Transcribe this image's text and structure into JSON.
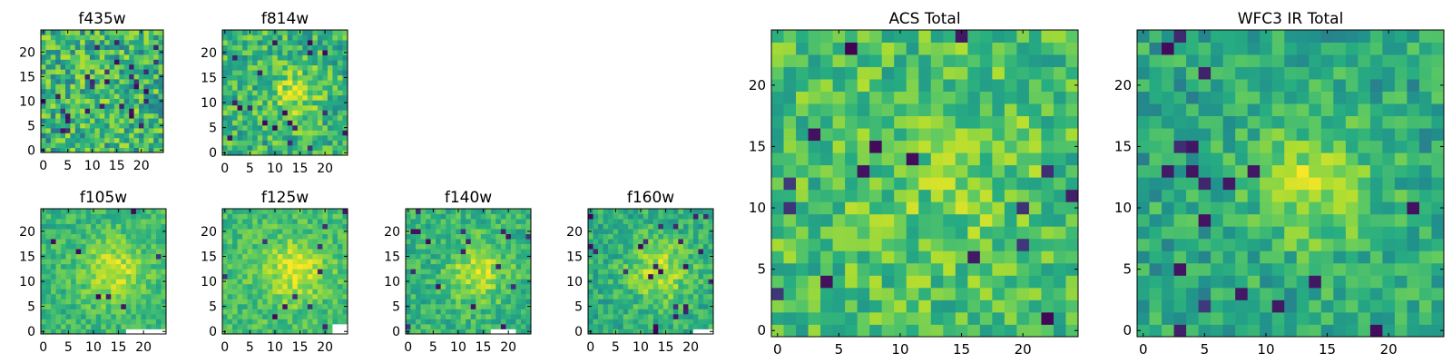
{
  "colors": {
    "colormap": [
      "#440154",
      "#3b528b",
      "#21918c",
      "#27ad81",
      "#5ec962",
      "#aadc32",
      "#fde725"
    ],
    "missing": "#ffffff",
    "frame": "#000000"
  },
  "chart_data": [
    {
      "type": "heatmap",
      "title": "f435w",
      "grid_size": 25,
      "xticks": [
        0,
        5,
        10,
        15,
        20
      ],
      "yticks": [
        0,
        5,
        10,
        15,
        20
      ],
      "xlim": [
        0,
        25
      ],
      "ylim": [
        0,
        25
      ],
      "pattern": {
        "center": [
          12,
          12
        ],
        "peak": 0.05,
        "sigma": 6,
        "base": 0.55,
        "noise": 0.3,
        "outliers": 0.05,
        "missing": []
      }
    },
    {
      "type": "heatmap",
      "title": "f814w",
      "grid_size": 25,
      "xticks": [
        0,
        5,
        10,
        15,
        20
      ],
      "yticks": [
        0,
        5,
        10,
        15,
        20
      ],
      "xlim": [
        0,
        25
      ],
      "ylim": [
        0,
        25
      ],
      "pattern": {
        "center": [
          14,
          12
        ],
        "peak": 0.3,
        "sigma": 3.5,
        "base": 0.55,
        "noise": 0.26,
        "outliers": 0.04,
        "missing": []
      }
    },
    {
      "type": "heatmap",
      "title": "f105w",
      "grid_size": 25,
      "xticks": [
        0,
        5,
        10,
        15,
        20
      ],
      "yticks": [
        0,
        5,
        10,
        15,
        20
      ],
      "xlim": [
        0,
        25
      ],
      "ylim": [
        0,
        25
      ],
      "pattern": {
        "center": [
          14,
          12
        ],
        "peak": 0.35,
        "sigma": 4.5,
        "base": 0.55,
        "noise": 0.16,
        "outliers": 0.015,
        "missing": [
          [
            17,
            0
          ],
          [
            18,
            0
          ],
          [
            19,
            0
          ],
          [
            20,
            0
          ],
          [
            21,
            0
          ],
          [
            22,
            0
          ],
          [
            23,
            0
          ],
          [
            24,
            0
          ]
        ]
      }
    },
    {
      "type": "heatmap",
      "title": "f125w",
      "grid_size": 25,
      "xticks": [
        0,
        5,
        10,
        15,
        20
      ],
      "yticks": [
        0,
        5,
        10,
        15,
        20
      ],
      "xlim": [
        0,
        25
      ],
      "ylim": [
        0,
        25
      ],
      "pattern": {
        "center": [
          14,
          12
        ],
        "peak": 0.35,
        "sigma": 4.5,
        "base": 0.58,
        "noise": 0.16,
        "outliers": 0.015,
        "missing": [
          [
            22,
            0
          ],
          [
            23,
            0
          ],
          [
            24,
            0
          ],
          [
            22,
            1
          ],
          [
            23,
            1
          ],
          [
            24,
            1
          ]
        ]
      }
    },
    {
      "type": "heatmap",
      "title": "f140w",
      "grid_size": 25,
      "xticks": [
        0,
        5,
        10,
        15,
        20
      ],
      "yticks": [
        0,
        5,
        10,
        15,
        20
      ],
      "xlim": [
        0,
        25
      ],
      "ylim": [
        0,
        25
      ],
      "pattern": {
        "center": [
          14,
          12
        ],
        "peak": 0.35,
        "sigma": 4.5,
        "base": 0.52,
        "noise": 0.18,
        "outliers": 0.03,
        "missing": [
          [
            17,
            0
          ],
          [
            18,
            0
          ],
          [
            19,
            0
          ],
          [
            20,
            0
          ],
          [
            21,
            0
          ]
        ]
      }
    },
    {
      "type": "heatmap",
      "title": "f160w",
      "grid_size": 25,
      "xticks": [
        0,
        5,
        10,
        15,
        20
      ],
      "yticks": [
        0,
        5,
        10,
        15,
        20
      ],
      "xlim": [
        0,
        25
      ],
      "ylim": [
        0,
        25
      ],
      "pattern": {
        "center": [
          14,
          12
        ],
        "peak": 0.35,
        "sigma": 4.5,
        "base": 0.5,
        "noise": 0.18,
        "outliers": 0.03,
        "missing": [
          [
            21,
            0
          ],
          [
            22,
            0
          ],
          [
            23,
            0
          ],
          [
            24,
            0
          ]
        ]
      }
    },
    {
      "type": "heatmap",
      "title": "ACS Total",
      "grid_size": 25,
      "xticks": [
        0,
        5,
        10,
        15,
        20
      ],
      "yticks": [
        0,
        5,
        10,
        15,
        20
      ],
      "xlim": [
        0,
        25
      ],
      "ylim": [
        0,
        25
      ],
      "pattern": {
        "center": [
          14,
          12
        ],
        "peak": 0.12,
        "sigma": 5,
        "base": 0.6,
        "noise": 0.24,
        "outliers": 0.025,
        "missing": []
      }
    },
    {
      "type": "heatmap",
      "title": "WFC3 IR Total",
      "grid_size": 25,
      "xticks": [
        0,
        5,
        10,
        15,
        20
      ],
      "yticks": [
        0,
        5,
        10,
        15,
        20
      ],
      "xlim": [
        0,
        25
      ],
      "ylim": [
        0,
        25
      ],
      "pattern": {
        "center": [
          14,
          12
        ],
        "peak": 0.35,
        "sigma": 3.5,
        "base": 0.48,
        "noise": 0.2,
        "outliers": 0.03,
        "missing": []
      }
    }
  ]
}
